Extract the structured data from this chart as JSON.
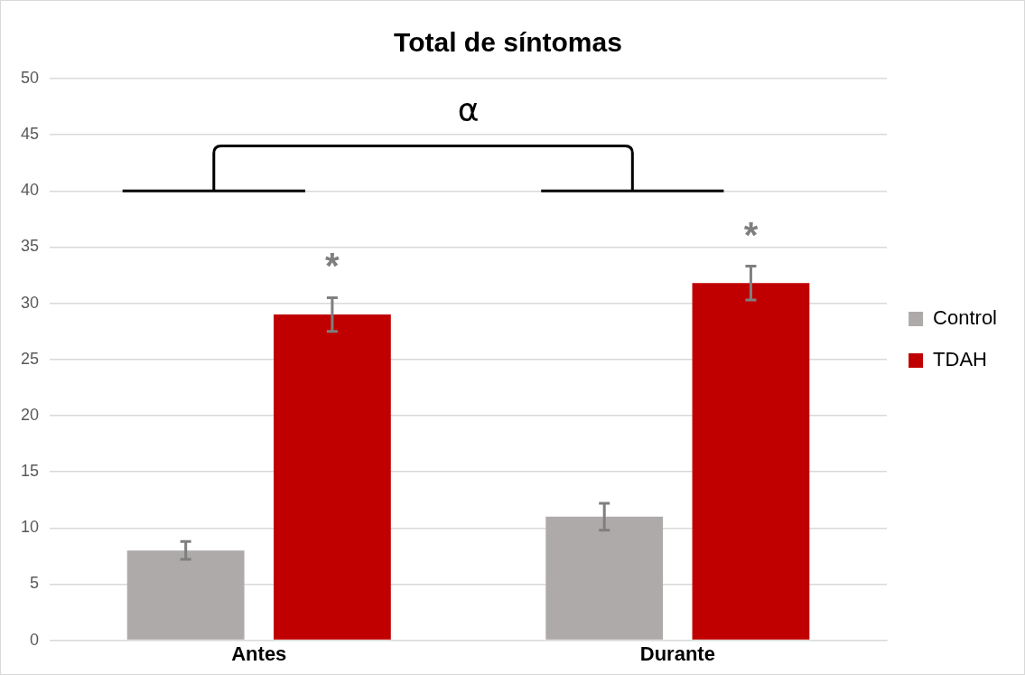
{
  "chart_data": {
    "type": "bar",
    "title": "Total de síntomas",
    "categories": [
      "Antes",
      "Durante"
    ],
    "series": [
      {
        "name": "Control",
        "color": "#aeaaaa",
        "values": [
          8,
          11
        ],
        "errors": [
          0.8,
          1.2
        ]
      },
      {
        "name": "TDAH",
        "color": "#c00000",
        "values": [
          29,
          31.8
        ],
        "errors": [
          1.5,
          1.5
        ]
      }
    ],
    "ylim": [
      0,
      50
    ],
    "yticks": [
      0,
      5,
      10,
      15,
      20,
      25,
      30,
      35,
      40,
      45,
      50
    ],
    "grid": "y",
    "legend": "right",
    "annotations": [
      "*",
      "*",
      "α"
    ]
  }
}
